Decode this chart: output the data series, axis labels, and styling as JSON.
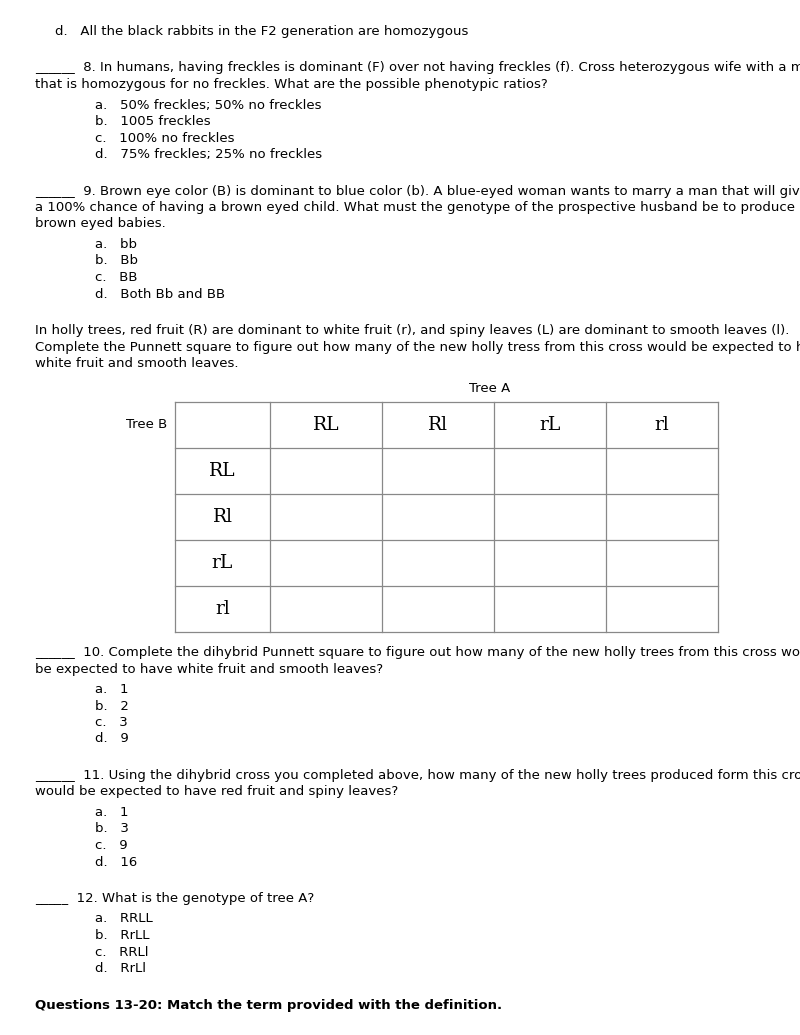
{
  "bg_color": "#ffffff",
  "text_color": "#000000",
  "body_fontsize": 9.5,
  "line_d": "d.   All the black rabbits in the F2 generation are homozygous",
  "q8_line1": "______  8. In humans, having freckles is dominant (F) over not having freckles (f). Cross heterozygous wife with a male",
  "q8_line2": "that is homozygous for no freckles. What are the possible phenotypic ratios?",
  "q8_choices": [
    "a.   50% freckles; 50% no freckles",
    "b.   1005 freckles",
    "c.   100% no freckles",
    "d.   75% freckles; 25% no freckles"
  ],
  "q9_line1": "______  9. Brown eye color (B) is dominant to blue color (b). A blue-eyed woman wants to marry a man that will give her",
  "q9_line2": "a 100% chance of having a brown eyed child. What must the genotype of the prospective husband be to produce only",
  "q9_line3": "brown eyed babies.",
  "q9_choices": [
    "a.   bb",
    "b.   Bb",
    "c.   BB",
    "d.   Both Bb and BB"
  ],
  "holly_line1": "In holly trees, red fruit (R) are dominant to white fruit (r), and spiny leaves (L) are dominant to smooth leaves (l).",
  "holly_line2": "Complete the Punnett square to figure out how many of the new holly tress from this cross would be expected to have",
  "holly_line3": "white fruit and smooth leaves.",
  "tree_a_label": "Tree A",
  "tree_b_label": "Tree B",
  "col_headers": [
    "RL",
    "Rl",
    "rL",
    "rl"
  ],
  "row_headers": [
    "RL",
    "Rl",
    "rL",
    "rl"
  ],
  "q10_line1": "______  10. Complete the dihybrid Punnett square to figure out how many of the new holly trees from this cross would",
  "q10_line2": "be expected to have white fruit and smooth leaves?",
  "q10_choices": [
    "a.   1",
    "b.   2",
    "c.   3",
    "d.   9"
  ],
  "q11_line1": "______  11. Using the dihybrid cross you completed above, how many of the new holly trees produced form this cross",
  "q11_line2": "would be expected to have red fruit and spiny leaves?",
  "q11_choices": [
    "a.   1",
    "b.   3",
    "c.   9",
    "d.   16"
  ],
  "q12_line1": "_____  12. What is the genotype of tree A?",
  "q12_choices": [
    "a.   RRLL",
    "b.   RrLL",
    "c.   RRLl",
    "d.   RrLl"
  ],
  "footer": "Questions 13-20: Match the term provided with the definition."
}
